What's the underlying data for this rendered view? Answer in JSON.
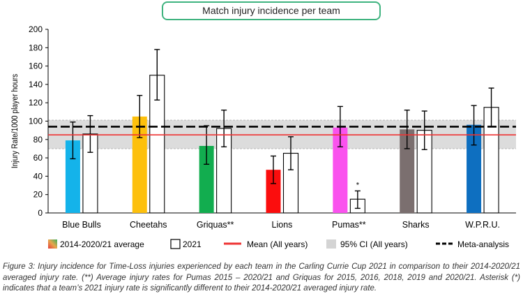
{
  "chart_data": {
    "type": "bar",
    "title": "Match injury incidence per team",
    "ylabel": "Injury Rate/1000 player hours",
    "xlabel": "",
    "ylim": [
      0,
      200
    ],
    "yticks": [
      0,
      20,
      40,
      60,
      80,
      100,
      120,
      140,
      160,
      180,
      200
    ],
    "grid": false,
    "categories": [
      "Blue Bulls",
      "Cheetahs",
      "Griquas**",
      "Lions",
      "Pumas**",
      "Sharks",
      "W.P.R.U."
    ],
    "series": [
      {
        "name": "2014-2020/21 average",
        "values": [
          79,
          105,
          73,
          47,
          93,
          91,
          96
        ],
        "ci_low": [
          59,
          82,
          53,
          32,
          72,
          70,
          74
        ],
        "ci_high": [
          99,
          128,
          95,
          62,
          116,
          112,
          117
        ],
        "colors": [
          "#14b3ea",
          "#fdc00c",
          "#12ad4f",
          "#fb0d0d",
          "#fa52ee",
          "#7b6f6f",
          "#0e6fc0"
        ]
      },
      {
        "name": "2021",
        "values": [
          86,
          150,
          92,
          65,
          15,
          90,
          115
        ],
        "ci_low": [
          66,
          123,
          72,
          47,
          5,
          69,
          94
        ],
        "ci_high": [
          106,
          178,
          112,
          83,
          24,
          111,
          136
        ],
        "fill": "#ffffff"
      }
    ],
    "significance": {
      "category": "Pumas**",
      "series": "2021",
      "marker": "*"
    },
    "reference_lines": {
      "mean_all_years": {
        "label": "Mean (All years)",
        "value": 85,
        "color": "#ee3333"
      },
      "meta_analysis": {
        "label": "Meta-analysis",
        "value": 94,
        "color": "#000000"
      },
      "ci_band": {
        "label": "95% CI (All years)",
        "low": 70,
        "high": 101,
        "color": "#dcdcdc"
      }
    },
    "legend": {
      "position": "bottom",
      "items": [
        "2014-2020/21 average",
        "2021",
        "Mean (All years)",
        "95% CI (All years)",
        "Meta-analysis"
      ]
    }
  },
  "caption": "Figure 3: Injury incidence for Time-Loss injuries experienced by each team in the Carling Currie Cup 2021 in comparison to their 2014-2020/21 averaged injury rate. (**) Average injury rates for Pumas 2015 – 2020/21 and Griquas for 2015, 2016, 2018, 2019 and 2020/21. Asterisk (*) indicates that a team’s 2021 injury rate is significantly different to their 2014-2020/21 averaged injury rate."
}
